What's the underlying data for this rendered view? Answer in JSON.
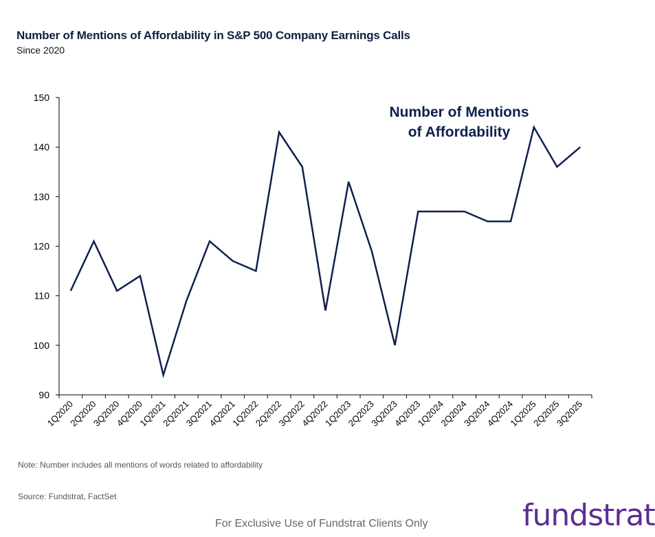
{
  "header": {
    "title": "Number of Mentions of Affordability in S&P 500 Company Earnings Calls",
    "subtitle": "Since 2020"
  },
  "chart_data": {
    "type": "line",
    "title": "Number of Mentions of Affordability in S&P 500 Company Earnings Calls",
    "subtitle": "Since 2020",
    "xlabel": "",
    "ylabel": "",
    "ylim": [
      90,
      150
    ],
    "yticks": [
      90,
      100,
      110,
      120,
      130,
      140,
      150
    ],
    "grid": false,
    "categories": [
      "1Q2020",
      "2Q2020",
      "3Q2020",
      "4Q2020",
      "1Q2021",
      "2Q2021",
      "3Q2021",
      "4Q2021",
      "1Q2022",
      "2Q2022",
      "3Q2022",
      "4Q2022",
      "1Q2023",
      "2Q2023",
      "3Q2023",
      "4Q2023",
      "1Q2024",
      "2Q2024",
      "3Q2024",
      "4Q2024",
      "1Q2025",
      "2Q2025",
      "3Q2025"
    ],
    "labeled_categories": [
      "1Q2020",
      "2Q2020",
      "3Q2020",
      "4Q2020",
      "1Q2021",
      "2Q2021",
      "3Q2021",
      "4Q2021",
      "1Q2022",
      "2Q2022",
      "3Q2022",
      "4Q2022",
      "1Q2023",
      "2Q2023",
      "3Q2023",
      "4Q2023",
      "1Q2024",
      "2Q2024",
      "3Q2024",
      "4Q2024",
      "1Q2025",
      "2Q2025",
      "3Q2025"
    ],
    "series": [
      {
        "name": "Number of Mentions of Affordability",
        "color": "#0f1f4f",
        "values": [
          111,
          121,
          111,
          114,
          94,
          109,
          121,
          117,
          115,
          143,
          136,
          107,
          133,
          119,
          100,
          127,
          127,
          127,
          125,
          125,
          144,
          136,
          140
        ]
      }
    ],
    "annotation_lines": [
      "Number of Mentions",
      "of Affordability"
    ]
  },
  "notes": {
    "note": "Note: Number includes all mentions of words related to affordability",
    "source": "Source: Fundstrat, FactSet"
  },
  "footer": {
    "disclaimer": "For Exclusive Use of Fundstrat Clients Only",
    "logo": "fundstrat"
  },
  "colors": {
    "line": "#0f1f4f",
    "title": "#0f1f3f",
    "logo": "#5c2d91"
  }
}
